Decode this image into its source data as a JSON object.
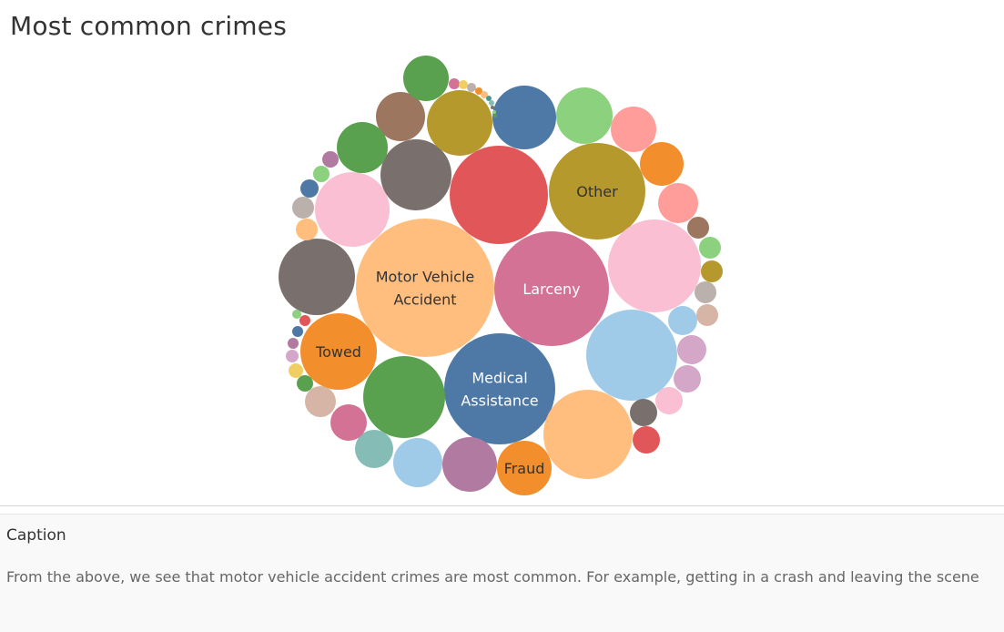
{
  "title": "Most common crimes",
  "caption": {
    "heading": "Caption",
    "text": "From the above, we see that motor vehicle accident crimes are most common. For example, getting in a crash and leaving the scene"
  },
  "chart_data": {
    "type": "bubble",
    "labels": [
      {
        "text": [
          "Motor Vehicle",
          "Accident"
        ],
        "color": "#333333"
      },
      {
        "text": [
          "Larceny"
        ],
        "color": "#ffffff"
      },
      {
        "text": [
          "Medical",
          "Assistance"
        ],
        "color": "#ffffff"
      },
      {
        "text": [
          "Other"
        ],
        "color": "#333333"
      },
      {
        "text": [
          "Towed"
        ],
        "color": "#333333"
      },
      {
        "text": [
          "Fraud"
        ],
        "color": "#333333"
      }
    ],
    "bubbles": [
      {
        "color": "#ffbe7d",
        "label": 0
      },
      {
        "color": "#d37295",
        "label": 1
      },
      {
        "color": "#4e79a7",
        "label": 2
      },
      {
        "color": "#b6992d",
        "label": 3
      },
      {
        "color": "#f28e2b",
        "label": 4
      },
      {
        "color": "#f28e2b",
        "label": 5
      },
      {
        "color": "#e15759"
      },
      {
        "color": "#fabfd2"
      },
      {
        "color": "#a0cbe8"
      },
      {
        "color": "#ffbe7d"
      },
      {
        "color": "#59a14f"
      },
      {
        "color": "#79706e"
      },
      {
        "color": "#fabfd2"
      },
      {
        "color": "#79706e"
      },
      {
        "color": "#b6992d"
      },
      {
        "color": "#4e79a7"
      },
      {
        "color": "#8cd17d"
      },
      {
        "color": "#9d7660"
      },
      {
        "color": "#59a14f"
      },
      {
        "color": "#59a14f"
      },
      {
        "color": "#b07aa1"
      },
      {
        "color": "#a0cbe8"
      },
      {
        "color": "#f28e2b"
      },
      {
        "color": "#ff9d9a"
      },
      {
        "color": "#ff9d9a"
      },
      {
        "color": "#86bcb6"
      },
      {
        "color": "#d37295"
      },
      {
        "color": "#d7b5a6"
      },
      {
        "color": "#e15759"
      },
      {
        "color": "#79706e"
      },
      {
        "color": "#fabfd2"
      },
      {
        "color": "#d4a6c8"
      },
      {
        "color": "#d4a6c8"
      },
      {
        "color": "#a0cbe8"
      },
      {
        "color": "#d7b5a6"
      },
      {
        "color": "#bab0ac"
      },
      {
        "color": "#b6992d"
      },
      {
        "color": "#8cd17d"
      },
      {
        "color": "#9d7660"
      },
      {
        "color": "#ffbe7d"
      },
      {
        "color": "#bab0ac"
      },
      {
        "color": "#4e79a7"
      },
      {
        "color": "#8cd17d"
      },
      {
        "color": "#b07aa1"
      },
      {
        "color": "#59a14f"
      },
      {
        "color": "#f1ce63"
      },
      {
        "color": "#d4a6c8"
      },
      {
        "color": "#b07aa1"
      },
      {
        "color": "#4e79a7"
      },
      {
        "color": "#e15759"
      },
      {
        "color": "#8cd17d"
      },
      {
        "color": "#d37295"
      },
      {
        "color": "#f1ce63"
      },
      {
        "color": "#bab0ac"
      },
      {
        "color": "#f28e2b"
      },
      {
        "color": "#ffbe7d"
      },
      {
        "color": "#499894"
      },
      {
        "color": "#86bcb6"
      },
      {
        "color": "#79706e"
      },
      {
        "color": "#8cd17d"
      },
      {
        "color": "#59a14f"
      }
    ]
  }
}
